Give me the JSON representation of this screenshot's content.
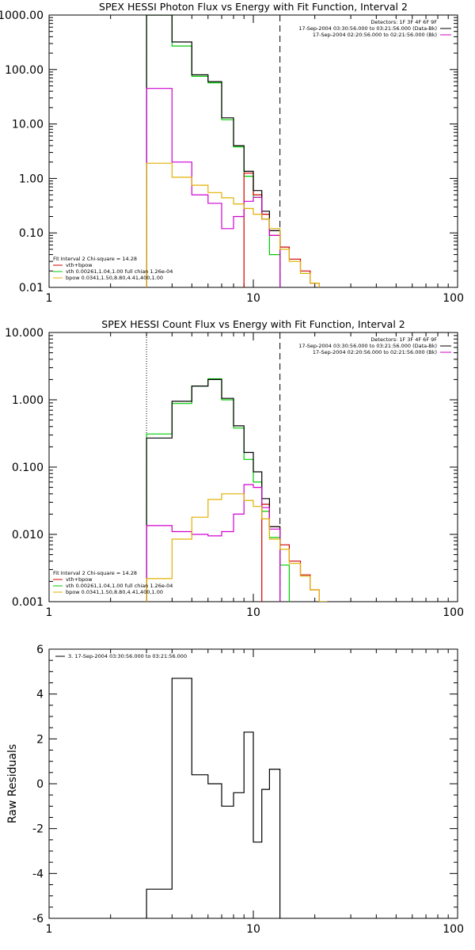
{
  "colors": {
    "total": "#000000",
    "combined": "#d00000",
    "thermal": "#00cc00",
    "powerlaw": "#e0b000",
    "background": "#d000d0",
    "axis": "#000000"
  },
  "chart_data": [
    {
      "type": "line",
      "title": "SPEX HESSI Photon Flux vs Energy with Fit Function, Interval 2",
      "xscale": "log",
      "yscale": "log",
      "xlim": [
        1,
        100
      ],
      "ylim": [
        0.01,
        1000
      ],
      "xticks": [
        1,
        10,
        100
      ],
      "xtick_labels": [
        "1",
        "10",
        "100"
      ],
      "yticks": [
        0.01,
        0.1,
        1,
        10,
        100,
        1000
      ],
      "ytick_labels": [
        "0.01",
        "0.10",
        "1.00",
        "10.00",
        "100.00",
        "1000.00"
      ],
      "legend_top": {
        "placement": "top-right",
        "lines": [
          {
            "text": "Detectors: 1F 3F 4F 6F 9F",
            "color": ""
          },
          {
            "text": "17-Sep-2004 03:30:56.000 to 03:21:56.000 (Data-Bk)",
            "color": "#000000"
          },
          {
            "text": "17-Sep-2004 02:20:56.000 to 02:21:56.000 (Bk)",
            "color": "#d000d0"
          }
        ]
      },
      "legend_bottom": {
        "placement": "bottom-left",
        "lines": [
          {
            "text": "Fit Interval 2   Chi-square = 14.28",
            "color": ""
          },
          {
            "text": "vth+bpow",
            "color": "#d00000"
          },
          {
            "text": "vth 0.00261,1.04,1.00  full chian 1.26e-04",
            "color": "#00cc00"
          },
          {
            "text": "bpow 0.0341,1.50,8.80,4.41,400,1.00",
            "color": "#e0b000"
          }
        ]
      },
      "vlines": [
        {
          "x": 3.0,
          "style": "dotted",
          "color": "#000000"
        },
        {
          "x": 13.5,
          "style": "dashed",
          "color": "#000000"
        }
      ],
      "edges": [
        3.0,
        4.0,
        5.0,
        6.0,
        7.0,
        8.0,
        9.0,
        10.0,
        11.0,
        12.0,
        13.5,
        15.0,
        17.0,
        19.0,
        21.0
      ],
      "series": [
        {
          "color": "#00cc00",
          "values": [
            1000,
            270,
            75,
            57,
            12,
            3.8,
            1.1,
            0.45,
            0.18,
            0.04,
            null,
            null,
            null,
            null
          ]
        },
        {
          "color": "#d00000",
          "values": [
            null,
            null,
            null,
            null,
            null,
            null,
            1.25,
            0.5,
            0.22,
            0.09,
            0.055,
            0.033,
            0.02,
            0.012
          ]
        },
        {
          "color": "#000000",
          "values": [
            1000,
            320,
            80,
            60,
            13,
            4,
            1.35,
            0.6,
            0.25,
            0.11,
            null,
            null,
            null,
            null
          ]
        },
        {
          "color": "#d000d0",
          "values": [
            45,
            2.0,
            0.5,
            0.35,
            0.12,
            0.2,
            0.38,
            0.45,
            0.18,
            0.09,
            null,
            null,
            null,
            null
          ]
        },
        {
          "color": "#e0b000",
          "values": [
            1.9,
            1.05,
            0.75,
            0.55,
            0.44,
            0.34,
            0.28,
            0.22,
            0.18,
            0.12,
            0.05,
            0.03,
            0.018,
            0.012
          ]
        }
      ]
    },
    {
      "type": "line",
      "title": "SPEX HESSI Count Flux vs Energy with Fit Function, Interval 2",
      "xscale": "log",
      "yscale": "log",
      "xlim": [
        1,
        100
      ],
      "ylim": [
        0.001,
        10
      ],
      "xticks": [
        1,
        10,
        100
      ],
      "xtick_labels": [
        "1",
        "10",
        "100"
      ],
      "yticks": [
        0.001,
        0.01,
        0.1,
        1,
        10
      ],
      "ytick_labels": [
        "0.001",
        "0.010",
        "0.100",
        "1.000",
        "10.000"
      ],
      "legend_top": {
        "placement": "top-right",
        "lines": [
          {
            "text": "Detectors: 1F 3F 4F 6F 9F",
            "color": ""
          },
          {
            "text": "17-Sep-2004 03:30:56.000 to 03:21:56.000 (Data-Bk)",
            "color": "#000000"
          },
          {
            "text": "17-Sep-2004 02:20:56.000 to 02:21:56.000 (Bk)",
            "color": "#d000d0"
          }
        ]
      },
      "legend_bottom": {
        "placement": "bottom-left",
        "lines": [
          {
            "text": "Fit Interval 2   Chi-square = 14.28",
            "color": ""
          },
          {
            "text": "vth+bpow",
            "color": "#d00000"
          },
          {
            "text": "vth 0.00261,1.04,1.00  full chian 1.26e-04",
            "color": "#00cc00"
          },
          {
            "text": "bpow 0.0341,1.50,8.80,4.41,400,1.00",
            "color": "#e0b000"
          }
        ]
      },
      "vlines": [
        {
          "x": 3.0,
          "style": "dotted",
          "color": "#000000"
        },
        {
          "x": 13.5,
          "style": "dashed",
          "color": "#000000"
        }
      ],
      "edges": [
        3.0,
        4.0,
        5.0,
        6.0,
        7.0,
        8.0,
        9.0,
        10.0,
        11.0,
        12.0,
        13.5,
        15.0,
        17.0,
        19.0,
        21.0,
        23.0
      ],
      "series": [
        {
          "color": "#00cc00",
          "values": [
            0.31,
            0.88,
            1.6,
            2.05,
            1.0,
            0.38,
            0.13,
            0.06,
            0.022,
            0.009,
            0.0035,
            null,
            null,
            null,
            null
          ]
        },
        {
          "color": "#d00000",
          "values": [
            null,
            null,
            null,
            null,
            null,
            null,
            null,
            null,
            0.028,
            0.013,
            0.007,
            0.004,
            0.0025,
            0.0015,
            null
          ]
        },
        {
          "color": "#000000",
          "values": [
            0.27,
            0.95,
            1.6,
            2.0,
            1.05,
            0.41,
            0.165,
            0.085,
            0.034,
            0.013,
            null,
            null,
            null,
            null,
            null
          ]
        },
        {
          "color": "#d000d0",
          "values": [
            0.0135,
            0.011,
            0.01,
            0.0095,
            0.011,
            0.02,
            0.055,
            0.05,
            0.025,
            0.012,
            null,
            null,
            null,
            null,
            null
          ]
        },
        {
          "color": "#e0b000",
          "values": [
            0.0022,
            0.0085,
            0.018,
            0.033,
            0.04,
            0.04,
            0.032,
            0.026,
            0.017,
            0.0085,
            0.006,
            0.0037,
            0.0024,
            0.0015,
            0.001
          ]
        }
      ]
    },
    {
      "type": "line",
      "title": "",
      "xscale": "log",
      "yscale": "linear",
      "xlim": [
        1,
        100
      ],
      "ylim": [
        -6,
        6
      ],
      "ylabel": "Raw Residuals",
      "xticks": [
        1,
        10,
        100
      ],
      "xtick_labels": [
        "1",
        "10",
        "100"
      ],
      "yticks": [
        -6,
        -4,
        -2,
        0,
        2,
        4,
        6
      ],
      "ytick_labels": [
        "-6",
        "-4",
        "-2",
        "0",
        "2",
        "4",
        "6"
      ],
      "legend_top": {
        "placement": "top-left",
        "lines": [
          {
            "text": "3. 17-Sep-2004 03:30:56.000 to 03:21:56.000",
            "color": "#000000"
          }
        ]
      },
      "vlines": [],
      "edges": [
        3.0,
        4.0,
        5.0,
        6.0,
        7.0,
        8.0,
        9.0,
        10.0,
        11.0,
        12.0,
        13.5
      ],
      "series": [
        {
          "color": "#000000",
          "values": [
            -4.7,
            4.7,
            0.4,
            0.0,
            -1.0,
            -0.4,
            2.3,
            -2.6,
            -0.25,
            0.65
          ]
        }
      ]
    }
  ]
}
